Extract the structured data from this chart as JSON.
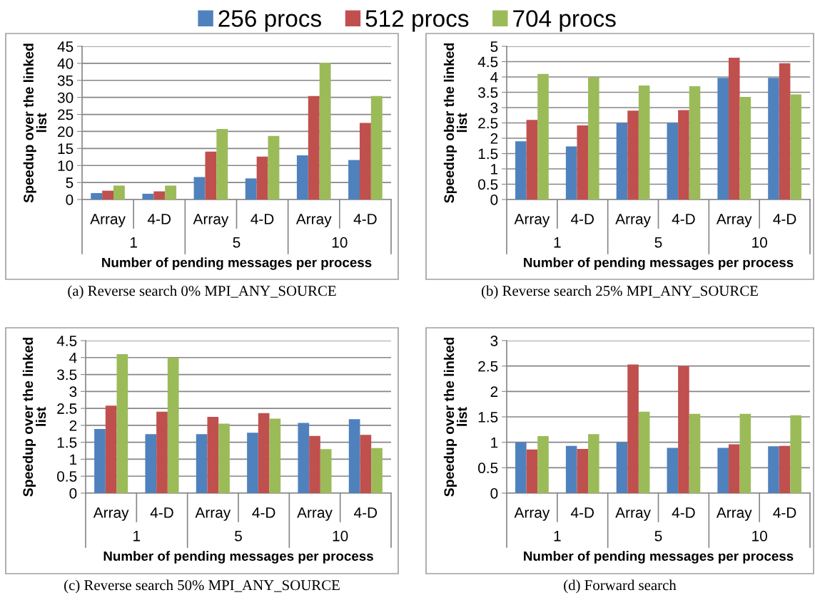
{
  "chart_data": [
    {
      "type": "bar",
      "title": "(a) Reverse search 0% MPI_ANY_SOURCE",
      "xlabel": "Number of pending messages per process",
      "ylabel": "Speedup over the linked list",
      "categories": [
        "Array",
        "4-D",
        "Array",
        "4-D",
        "Array",
        "4-D"
      ],
      "annotations": [
        "1",
        "5",
        "10"
      ],
      "series": [
        {
          "name": "256 procs",
          "color": "#4f81bd",
          "values": [
            1.9,
            1.7,
            6.6,
            6.2,
            13.0,
            11.6
          ]
        },
        {
          "name": "512 procs",
          "color": "#c0504d",
          "values": [
            2.6,
            2.4,
            14.1,
            12.6,
            30.4,
            22.5
          ]
        },
        {
          "name": "704 procs",
          "color": "#9bbb59",
          "values": [
            4.1,
            4.1,
            20.7,
            18.7,
            40.2,
            30.4
          ]
        }
      ],
      "ylim": [
        0,
        45
      ],
      "yticks": [
        0,
        5,
        10,
        15,
        20,
        25,
        30,
        35,
        40,
        45
      ],
      "grid": "y",
      "legend": "top"
    },
    {
      "type": "bar",
      "title": "(b) Reverse search 25% MPI_ANY_SOURCE",
      "xlabel": "Number of pending messages per process",
      "ylabel": "Speedup ober the linked list",
      "categories": [
        "Array",
        "4-D",
        "Array",
        "4-D",
        "Array",
        "4-D"
      ],
      "annotations": [
        "1",
        "5",
        "10"
      ],
      "series": [
        {
          "color": "#4f81bd",
          "values": [
            1.9,
            1.73,
            2.5,
            2.5,
            3.97,
            3.97
          ]
        },
        {
          "color": "#c0504d",
          "values": [
            2.6,
            2.42,
            2.9,
            2.92,
            4.63,
            4.45
          ]
        },
        {
          "color": "#9bbb59",
          "values": [
            4.1,
            3.98,
            3.72,
            3.7,
            3.35,
            3.43
          ]
        }
      ],
      "ylim": [
        0,
        5
      ],
      "yticks": [
        0,
        0.5,
        1,
        1.5,
        2,
        2.5,
        3,
        3.5,
        4,
        4.5,
        5
      ],
      "grid": "y"
    },
    {
      "type": "bar",
      "title": "(c) Reverse search 50% MPI_ANY_SOURCE",
      "xlabel": "Number of pending messages per process",
      "ylabel": "Speedup over the linked list",
      "categories": [
        "Array",
        "4-D",
        "Array",
        "4-D",
        "Array",
        "4-D"
      ],
      "annotations": [
        "1",
        "5",
        "10"
      ],
      "series": [
        {
          "color": "#4f81bd",
          "values": [
            1.89,
            1.74,
            1.74,
            1.78,
            2.07,
            2.18
          ]
        },
        {
          "color": "#c0504d",
          "values": [
            2.58,
            2.4,
            2.25,
            2.36,
            1.69,
            1.72
          ]
        },
        {
          "color": "#9bbb59",
          "values": [
            4.1,
            4.0,
            2.05,
            2.2,
            1.3,
            1.33
          ]
        }
      ],
      "ylim": [
        0,
        4.5
      ],
      "yticks": [
        0,
        0.5,
        1,
        1.5,
        2,
        2.5,
        3,
        3.5,
        4,
        4.5
      ],
      "grid": "y"
    },
    {
      "type": "bar",
      "title": "(d) Forward search",
      "xlabel": "Number of pending messages per process",
      "ylabel": "Speedup over the linked list",
      "categories": [
        "Array",
        "4-D",
        "Array",
        "4-D",
        "Array",
        "4-D"
      ],
      "annotations": [
        "1",
        "5",
        "10"
      ],
      "series": [
        {
          "color": "#4f81bd",
          "values": [
            1.0,
            0.93,
            1.0,
            0.89,
            0.89,
            0.92
          ]
        },
        {
          "color": "#c0504d",
          "values": [
            0.86,
            0.87,
            2.53,
            2.5,
            0.96,
            0.93
          ]
        },
        {
          "color": "#9bbb59",
          "values": [
            1.12,
            1.16,
            1.6,
            1.56,
            1.56,
            1.53
          ]
        }
      ],
      "ylim": [
        0,
        3
      ],
      "yticks": [
        0,
        0.5,
        1,
        1.5,
        2,
        2.5,
        3
      ],
      "grid": "y"
    }
  ]
}
